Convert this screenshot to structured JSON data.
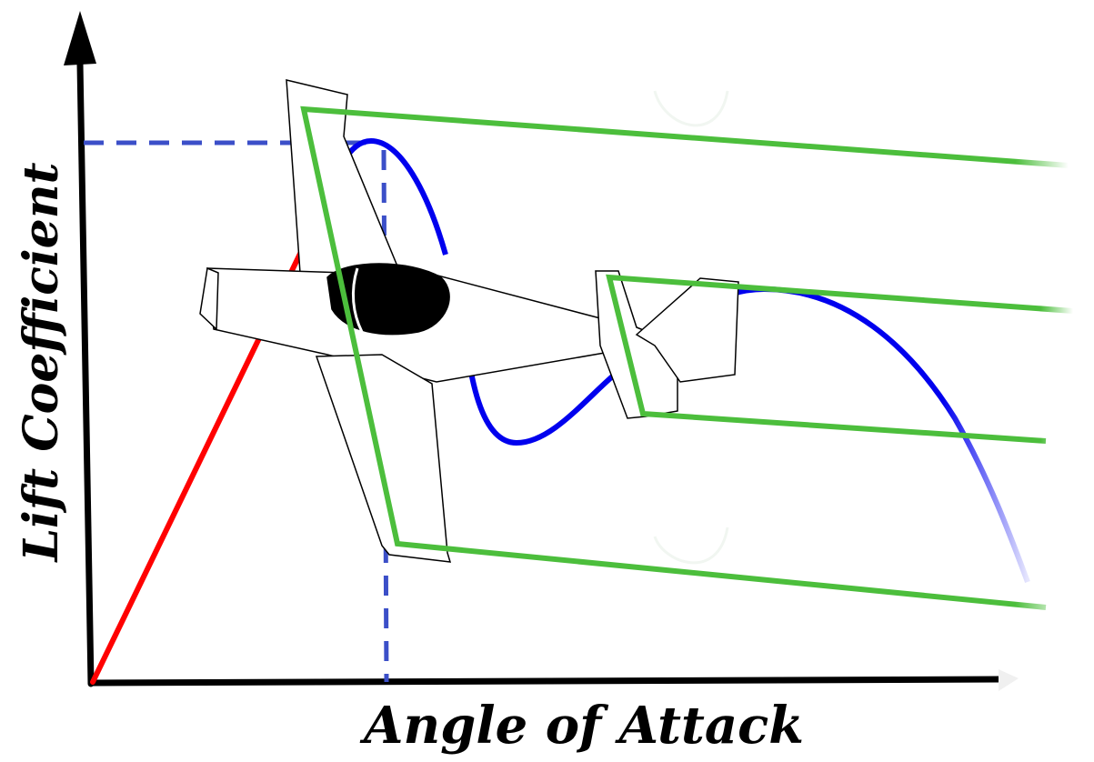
{
  "labels": {
    "x_axis": "Angle of Attack",
    "y_axis": "Lift Coefficient"
  },
  "colors": {
    "axes": "#000000",
    "linear_lift": "#ff0000",
    "post_stall_curve": "#0000ee",
    "guide_lines": "#3b4fc8",
    "streamlines": "#4cbe3c",
    "aircraft_fill": "#ffffff",
    "canopy": "#000000"
  },
  "elements": {
    "aircraft": "aircraft-illustration",
    "airflow": "green-airflow-streamlines",
    "stall_marker": "dashed-stall-guide-lines"
  }
}
